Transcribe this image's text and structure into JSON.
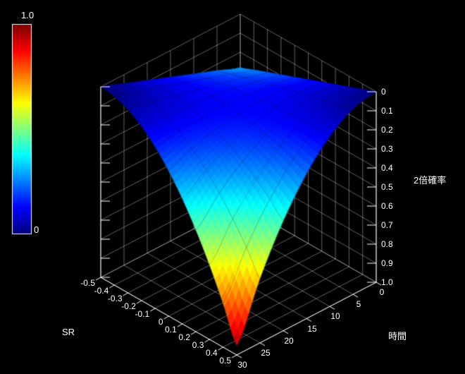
{
  "colors": {
    "background": "#000000",
    "axis": "#ffffff",
    "grid": "rgba(255,255,255,0.38)"
  },
  "chart_data": {
    "type": "surface",
    "title": "",
    "colormap": "jet",
    "colorbar": {
      "max_label": "1.0",
      "min_label": "0"
    },
    "x": {
      "label": "SR",
      "min": -0.5,
      "max": 0.5,
      "ticks": [
        "-0.5",
        "-0.4",
        "-0.3",
        "-0.2",
        "-0.1",
        "0",
        "0.1",
        "0.2",
        "0.3",
        "0.4",
        "0.5"
      ],
      "tick_values": [
        -0.5,
        -0.4,
        -0.3,
        -0.2,
        -0.1,
        0,
        0.1,
        0.2,
        0.3,
        0.4,
        0.5
      ]
    },
    "y": {
      "label": "時間",
      "min": 0,
      "max": 30,
      "ticks": [
        "30",
        "25",
        "20",
        "15",
        "10",
        "5",
        "0"
      ],
      "tick_values": [
        30,
        25,
        20,
        15,
        10,
        5,
        0
      ]
    },
    "z": {
      "label": "2倍確率",
      "min": 0,
      "max": 1,
      "inverted": true,
      "ticks": [
        "0",
        "0.1",
        "0.2",
        "0.3",
        "0.4",
        "0.5",
        "0.6",
        "0.7",
        "0.8",
        "0.9",
        "1.0"
      ],
      "tick_values": [
        0,
        0.1,
        0.2,
        0.3,
        0.4,
        0.5,
        0.6,
        0.7,
        0.8,
        0.9,
        1.0
      ]
    },
    "sr_values": [
      -0.5,
      -0.4,
      -0.3,
      -0.2,
      -0.1,
      0,
      0.1,
      0.2,
      0.3,
      0.4,
      0.5
    ],
    "t_values": [
      0,
      5,
      10,
      15,
      20,
      25,
      30
    ],
    "z_grid": [
      [
        0.28,
        0.233,
        0.187,
        0.14,
        0.093,
        0.047,
        0
      ],
      [
        0.252,
        0.21,
        0.169,
        0.128,
        0.088,
        0.049,
        0.01
      ],
      [
        0.224,
        0.188,
        0.154,
        0.122,
        0.092,
        0.064,
        0.038
      ],
      [
        0.196,
        0.166,
        0.14,
        0.119,
        0.103,
        0.092,
        0.086
      ],
      [
        0.168,
        0.144,
        0.129,
        0.122,
        0.124,
        0.134,
        0.152
      ],
      [
        0.14,
        0.123,
        0.12,
        0.129,
        0.152,
        0.188,
        0.238
      ],
      [
        0.112,
        0.103,
        0.113,
        0.142,
        0.189,
        0.256,
        0.342
      ],
      [
        0.084,
        0.083,
        0.108,
        0.158,
        0.235,
        0.337,
        0.466
      ],
      [
        0.056,
        0.064,
        0.105,
        0.18,
        0.289,
        0.432,
        0.608
      ],
      [
        0.028,
        0.045,
        0.104,
        0.206,
        0.351,
        0.539,
        0.77
      ],
      [
        0,
        0.026,
        0.106,
        0.238,
        0.422,
        0.66,
        0.95
      ]
    ]
  }
}
